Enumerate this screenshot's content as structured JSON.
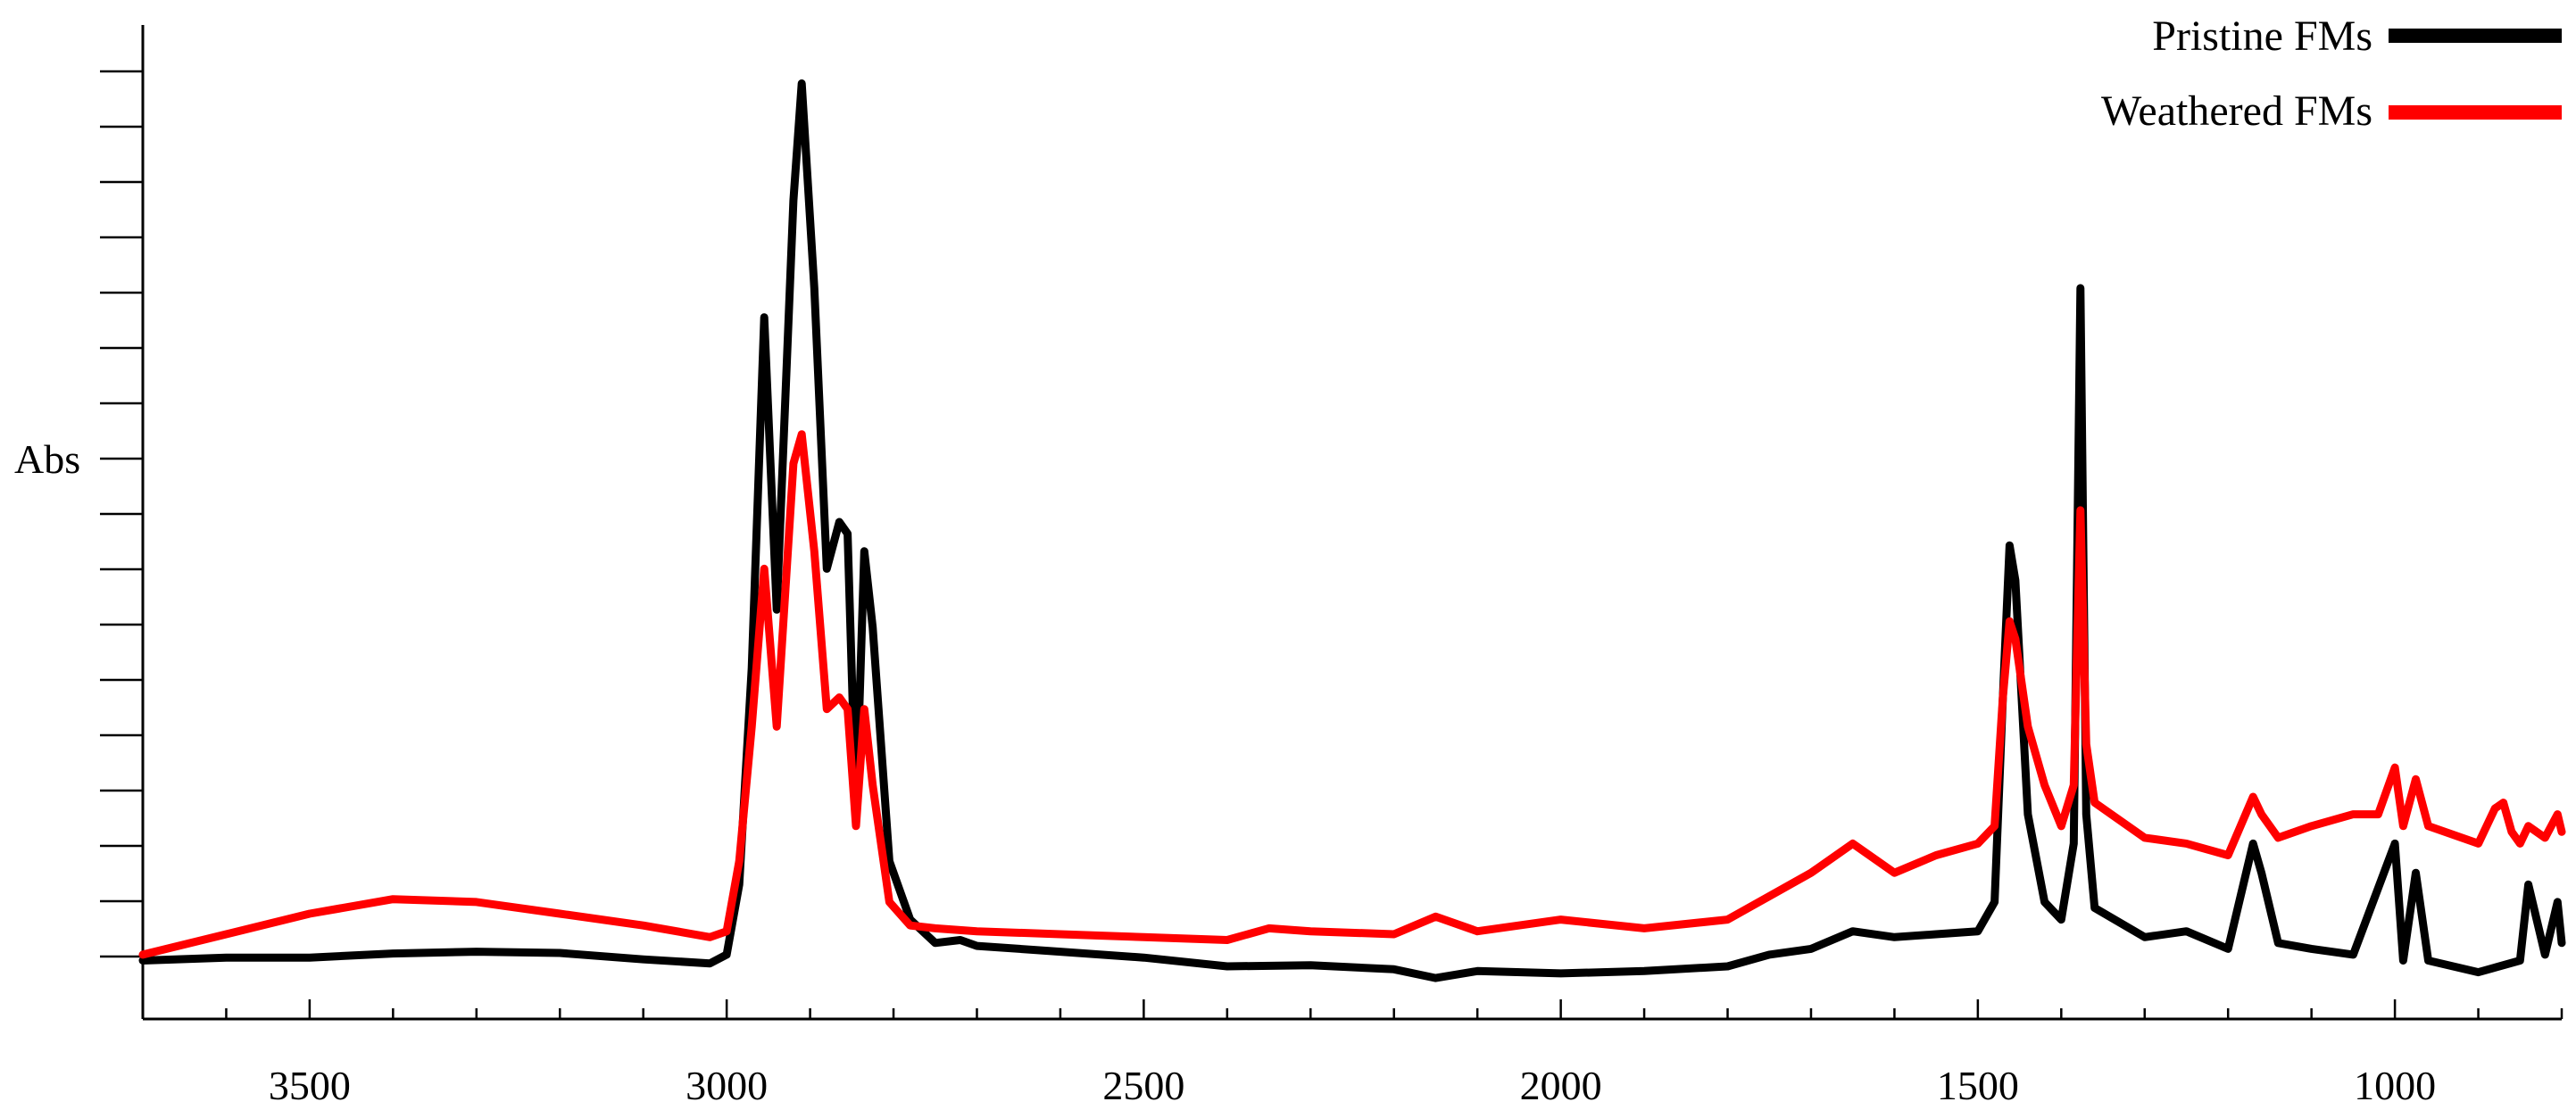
{
  "chart_data": {
    "type": "line",
    "title": "",
    "xlabel": "",
    "ylabel": "Abs",
    "xlim": [
      3700,
      800
    ],
    "ylim": [
      -0.05,
      1.65
    ],
    "x_reversed": true,
    "grid": false,
    "legend_position": "top-right",
    "x_ticks": [
      3500,
      3000,
      2500,
      2000,
      1500,
      1000
    ],
    "x_tick_labels": [
      "3500",
      "3000",
      "2500",
      "2000",
      "1500",
      "1000"
    ],
    "series": [
      {
        "name": "Pristine FMs",
        "color": "#000000",
        "points": [
          [
            3700,
            0.05
          ],
          [
            3600,
            0.055
          ],
          [
            3500,
            0.055
          ],
          [
            3400,
            0.062
          ],
          [
            3300,
            0.065
          ],
          [
            3200,
            0.063
          ],
          [
            3100,
            0.052
          ],
          [
            3020,
            0.045
          ],
          [
            3000,
            0.06
          ],
          [
            2985,
            0.18
          ],
          [
            2970,
            0.55
          ],
          [
            2955,
            1.15
          ],
          [
            2940,
            0.65
          ],
          [
            2920,
            1.35
          ],
          [
            2910,
            1.55
          ],
          [
            2895,
            1.2
          ],
          [
            2880,
            0.72
          ],
          [
            2865,
            0.8
          ],
          [
            2855,
            0.78
          ],
          [
            2845,
            0.3
          ],
          [
            2835,
            0.75
          ],
          [
            2825,
            0.62
          ],
          [
            2805,
            0.22
          ],
          [
            2780,
            0.12
          ],
          [
            2750,
            0.08
          ],
          [
            2720,
            0.085
          ],
          [
            2700,
            0.075
          ],
          [
            2600,
            0.065
          ],
          [
            2500,
            0.055
          ],
          [
            2400,
            0.04
          ],
          [
            2300,
            0.042
          ],
          [
            2200,
            0.035
          ],
          [
            2150,
            0.02
          ],
          [
            2100,
            0.032
          ],
          [
            2000,
            0.028
          ],
          [
            1900,
            0.032
          ],
          [
            1800,
            0.04
          ],
          [
            1750,
            0.06
          ],
          [
            1700,
            0.07
          ],
          [
            1650,
            0.1
          ],
          [
            1600,
            0.09
          ],
          [
            1550,
            0.095
          ],
          [
            1500,
            0.1
          ],
          [
            1480,
            0.15
          ],
          [
            1470,
            0.5
          ],
          [
            1462,
            0.76
          ],
          [
            1455,
            0.7
          ],
          [
            1440,
            0.3
          ],
          [
            1420,
            0.15
          ],
          [
            1400,
            0.12
          ],
          [
            1385,
            0.25
          ],
          [
            1377,
            1.2
          ],
          [
            1370,
            0.3
          ],
          [
            1360,
            0.14
          ],
          [
            1300,
            0.09
          ],
          [
            1250,
            0.1
          ],
          [
            1200,
            0.07
          ],
          [
            1170,
            0.25
          ],
          [
            1160,
            0.2
          ],
          [
            1140,
            0.08
          ],
          [
            1100,
            0.07
          ],
          [
            1050,
            0.06
          ],
          [
            1000,
            0.25
          ],
          [
            990,
            0.05
          ],
          [
            975,
            0.2
          ],
          [
            960,
            0.05
          ],
          [
            900,
            0.03
          ],
          [
            850,
            0.05
          ],
          [
            840,
            0.18
          ],
          [
            820,
            0.06
          ],
          [
            805,
            0.15
          ],
          [
            800,
            0.08
          ]
        ]
      },
      {
        "name": "Weathered FMs",
        "color": "#ff0000",
        "points": [
          [
            3700,
            0.06
          ],
          [
            3600,
            0.095
          ],
          [
            3500,
            0.13
          ],
          [
            3400,
            0.155
          ],
          [
            3300,
            0.15
          ],
          [
            3200,
            0.13
          ],
          [
            3100,
            0.11
          ],
          [
            3020,
            0.09
          ],
          [
            3000,
            0.1
          ],
          [
            2985,
            0.22
          ],
          [
            2970,
            0.45
          ],
          [
            2955,
            0.72
          ],
          [
            2940,
            0.45
          ],
          [
            2920,
            0.9
          ],
          [
            2910,
            0.95
          ],
          [
            2895,
            0.75
          ],
          [
            2880,
            0.48
          ],
          [
            2865,
            0.5
          ],
          [
            2855,
            0.48
          ],
          [
            2845,
            0.28
          ],
          [
            2835,
            0.48
          ],
          [
            2825,
            0.35
          ],
          [
            2805,
            0.15
          ],
          [
            2780,
            0.11
          ],
          [
            2750,
            0.105
          ],
          [
            2700,
            0.1
          ],
          [
            2600,
            0.095
          ],
          [
            2500,
            0.09
          ],
          [
            2400,
            0.085
          ],
          [
            2350,
            0.105
          ],
          [
            2300,
            0.1
          ],
          [
            2200,
            0.095
          ],
          [
            2150,
            0.125
          ],
          [
            2100,
            0.1
          ],
          [
            2000,
            0.12
          ],
          [
            1900,
            0.105
          ],
          [
            1800,
            0.12
          ],
          [
            1750,
            0.16
          ],
          [
            1700,
            0.2
          ],
          [
            1650,
            0.25
          ],
          [
            1600,
            0.2
          ],
          [
            1550,
            0.23
          ],
          [
            1500,
            0.25
          ],
          [
            1480,
            0.28
          ],
          [
            1470,
            0.5
          ],
          [
            1462,
            0.63
          ],
          [
            1455,
            0.6
          ],
          [
            1440,
            0.45
          ],
          [
            1420,
            0.35
          ],
          [
            1400,
            0.28
          ],
          [
            1385,
            0.35
          ],
          [
            1377,
            0.82
          ],
          [
            1370,
            0.42
          ],
          [
            1360,
            0.32
          ],
          [
            1300,
            0.26
          ],
          [
            1250,
            0.25
          ],
          [
            1200,
            0.23
          ],
          [
            1170,
            0.33
          ],
          [
            1160,
            0.3
          ],
          [
            1140,
            0.26
          ],
          [
            1100,
            0.28
          ],
          [
            1050,
            0.3
          ],
          [
            1020,
            0.3
          ],
          [
            1000,
            0.38
          ],
          [
            990,
            0.28
          ],
          [
            975,
            0.36
          ],
          [
            960,
            0.28
          ],
          [
            900,
            0.25
          ],
          [
            880,
            0.31
          ],
          [
            870,
            0.32
          ],
          [
            860,
            0.27
          ],
          [
            850,
            0.25
          ],
          [
            840,
            0.28
          ],
          [
            820,
            0.26
          ],
          [
            805,
            0.3
          ],
          [
            800,
            0.27
          ]
        ]
      }
    ]
  }
}
